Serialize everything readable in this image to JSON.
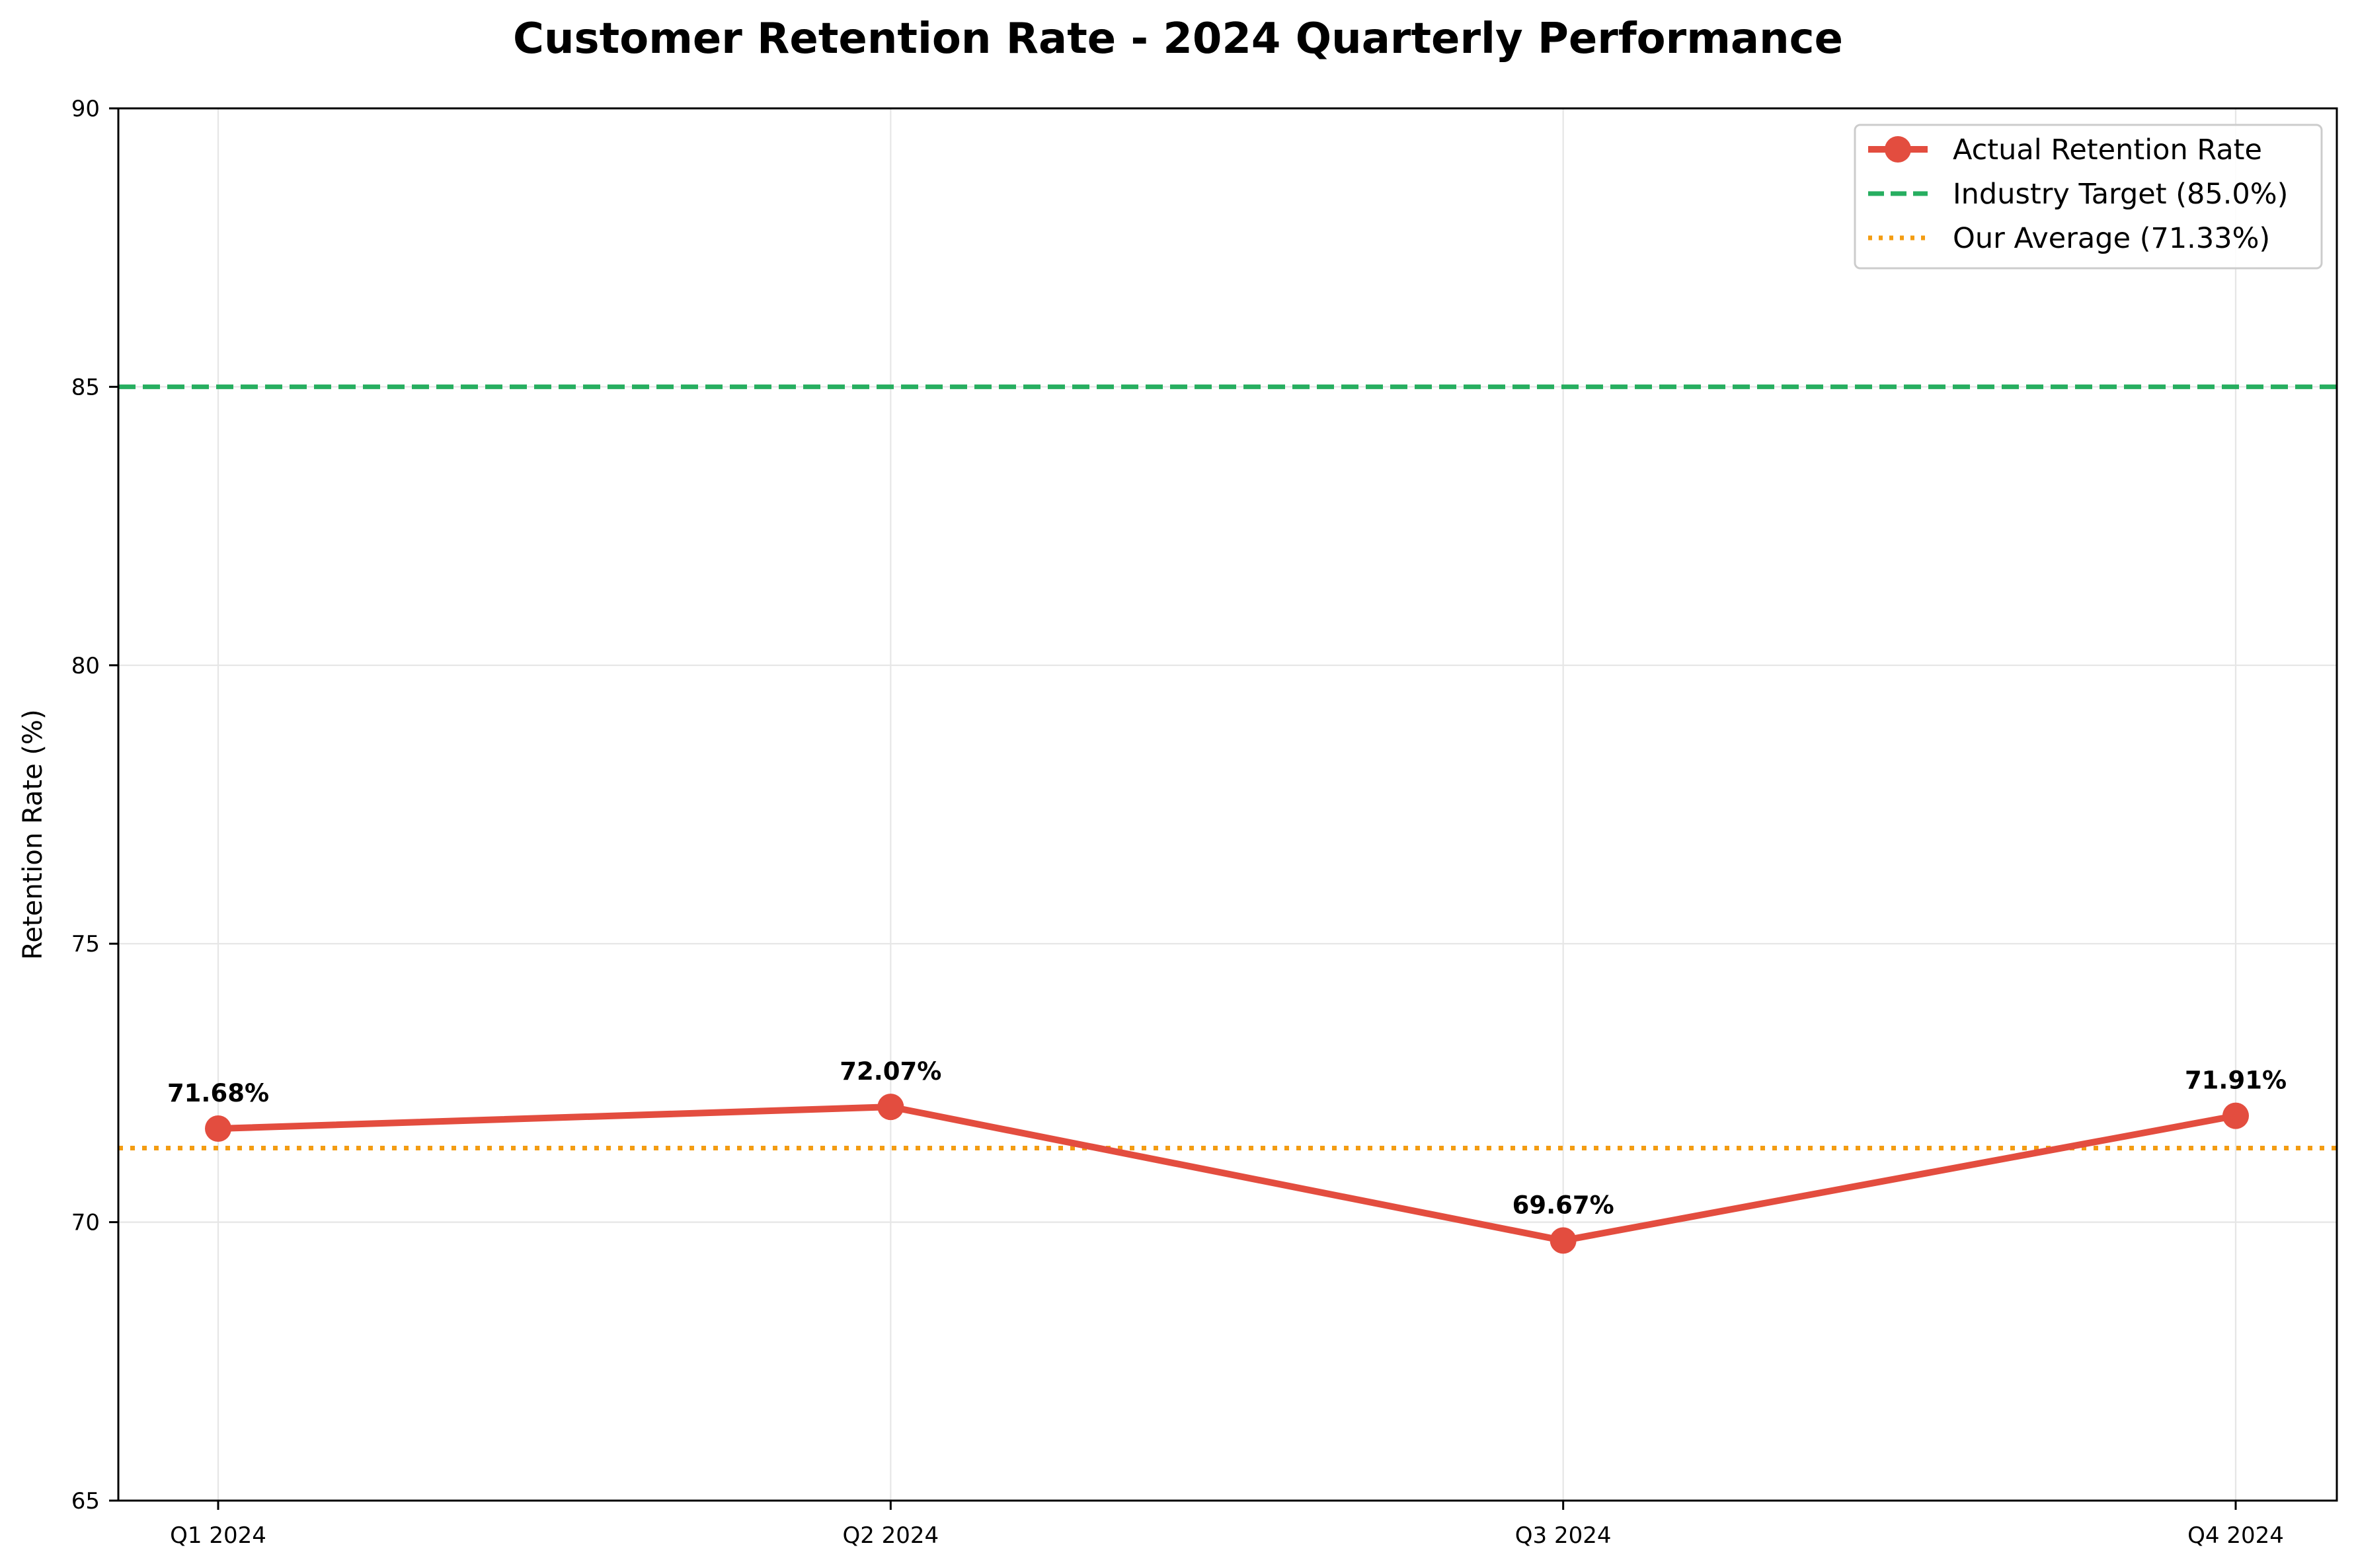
{
  "chart_data": {
    "type": "line",
    "title": "Customer Retention Rate - 2024 Quarterly Performance",
    "xlabel": "",
    "ylabel": "Retention Rate (%)",
    "categories": [
      "Q1 2024",
      "Q2 2024",
      "Q3 2024",
      "Q4 2024"
    ],
    "ylim": [
      65,
      90
    ],
    "yticks": [
      65,
      70,
      75,
      80,
      85,
      90
    ],
    "grid": true,
    "legend_position": "top-right",
    "series": [
      {
        "name": "Actual Retention Rate",
        "values": [
          71.68,
          72.07,
          69.67,
          71.91
        ],
        "labels": [
          "71.68%",
          "72.07%",
          "69.67%",
          "71.91%"
        ],
        "color": "#e34d3f",
        "style": "solid-with-markers"
      }
    ],
    "reference_lines": [
      {
        "name": "Industry Target (85.0%)",
        "value": 85.0,
        "color": "#27ae60",
        "style": "dashed"
      },
      {
        "name": "Our Average (71.33%)",
        "value": 71.33,
        "color": "#f39c12",
        "style": "dotted"
      }
    ]
  }
}
